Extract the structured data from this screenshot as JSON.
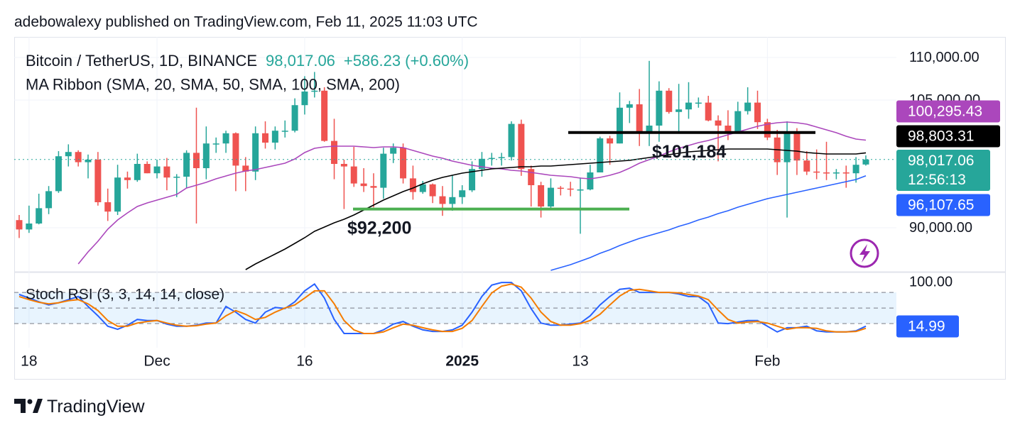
{
  "header": "adebowalexy published on TradingView.com, Feb 11, 2025 11:03 UTC",
  "footer": "TradingView",
  "chart_data": {
    "type": "candlestick",
    "title": "Bitcoin / TetherUS, 1D, BINANCE",
    "last_label": "98,017.06",
    "change": "+586.23 (+0.60%)",
    "countdown": "12:56:13",
    "indicator_label": "MA Ribbon (SMA, 20, SMA, 50, SMA, 100, SMA, 200)",
    "up_color": "#26a69a",
    "down_color": "#ef5350",
    "categories": [
      null,
      "18",
      null,
      null,
      null,
      null,
      null,
      null,
      null,
      null,
      null,
      null,
      null,
      null,
      "Dec",
      null,
      null,
      null,
      null,
      null,
      null,
      null,
      null,
      null,
      null,
      null,
      null,
      null,
      null,
      "16",
      null,
      null,
      null,
      null,
      null,
      null,
      null,
      null,
      null,
      null,
      null,
      null,
      null,
      null,
      null,
      "2025",
      null,
      null,
      null,
      null,
      null,
      null,
      null,
      null,
      null,
      null,
      null,
      "13",
      null,
      null,
      null,
      null,
      null,
      null,
      null,
      null,
      null,
      null,
      null,
      null,
      null,
      null,
      null,
      null,
      null,
      null,
      "Feb",
      null,
      null,
      null,
      null,
      null,
      null,
      null,
      null,
      null,
      null
    ],
    "open": [
      90900,
      89800,
      90500,
      92300,
      94300,
      98400,
      98900,
      97700,
      98000,
      93000,
      91900,
      95900,
      95600,
      97500,
      96400,
      97200,
      95900,
      96000,
      98800,
      97000,
      99900,
      99900,
      101100,
      97300,
      96600,
      101100,
      100000,
      101400,
      101400,
      104400,
      106000,
      106100,
      100200,
      97500,
      97200,
      95200,
      94900,
      94700,
      98700,
      99400,
      95800,
      94200,
      95100,
      93700,
      92800,
      93600,
      94400,
      96900,
      98100,
      98200,
      98300,
      102200,
      96900,
      95000,
      92500,
      94700,
      94600,
      94500,
      94500,
      96500,
      100500,
      99900,
      104100,
      104500,
      101100,
      102000,
      106100,
      103600,
      103900,
      104700,
      104700,
      102600,
      102000,
      101300,
      103700,
      104700,
      102400,
      100600,
      97700,
      101300,
      97900,
      96600,
      96500,
      96400,
      96500,
      96400,
      97430.83
    ],
    "high": [
      91500,
      92600,
      94000,
      94900,
      99000,
      99800,
      99100,
      98600,
      98900,
      94600,
      97400,
      96600,
      98700,
      97800,
      98000,
      98200,
      96300,
      99100,
      104100,
      101900,
      100600,
      101400,
      101200,
      98300,
      101900,
      102500,
      101900,
      102600,
      105200,
      107800,
      108300,
      106500,
      102800,
      98000,
      99500,
      97000,
      96400,
      99400,
      99900,
      99900,
      97300,
      95500,
      95200,
      94900,
      96200,
      95000,
      97800,
      98900,
      98800,
      98800,
      102500,
      102700,
      97300,
      95400,
      95800,
      94900,
      95400,
      95900,
      97400,
      100700,
      100800,
      105900,
      104900,
      106300,
      109600,
      107200,
      106400,
      106900,
      107100,
      105300,
      105500,
      103200,
      103800,
      104800,
      106500,
      106100,
      102800,
      101500,
      102500,
      101700,
      99000,
      99200,
      100100,
      96900,
      97300,
      98300,
      98500
    ],
    "low": [
      88800,
      89400,
      90400,
      91600,
      94100,
      97200,
      97200,
      95800,
      92600,
      90800,
      91500,
      94600,
      95400,
      96400,
      95800,
      94400,
      93600,
      94700,
      90500,
      95700,
      98800,
      98800,
      94300,
      94300,
      95600,
      99300,
      99200,
      100600,
      101200,
      103300,
      105300,
      100100,
      95700,
      92200,
      94800,
      94200,
      92400,
      93400,
      97600,
      95200,
      93300,
      94000,
      92900,
      91400,
      92000,
      92800,
      94200,
      96000,
      97300,
      97300,
      97900,
      96100,
      92500,
      91200,
      92200,
      93800,
      93700,
      89300,
      94400,
      96500,
      97400,
      99900,
      102300,
      99600,
      99600,
      100100,
      103400,
      101300,
      102800,
      104100,
      102500,
      97800,
      100300,
      101300,
      103300,
      101600,
      100300,
      96200,
      91200,
      96200,
      96200,
      95700,
      95600,
      95700,
      94700,
      95300,
      97300
    ],
    "close": [
      89800,
      90500,
      92300,
      94300,
      98400,
      98900,
      97700,
      98000,
      93000,
      91900,
      95900,
      95600,
      97500,
      96400,
      97200,
      95900,
      96000,
      98800,
      97000,
      99900,
      99900,
      101100,
      97300,
      96600,
      101100,
      100000,
      101400,
      101400,
      104400,
      106000,
      106100,
      100200,
      97500,
      97200,
      95200,
      94900,
      94700,
      98700,
      99400,
      95800,
      94200,
      95100,
      93700,
      92800,
      93600,
      94400,
      96900,
      98100,
      98200,
      98300,
      102200,
      96900,
      95000,
      92500,
      94700,
      94600,
      94500,
      94500,
      96500,
      100500,
      99900,
      104100,
      104500,
      101100,
      102000,
      106100,
      103600,
      103900,
      104700,
      104700,
      102600,
      102000,
      101300,
      103700,
      104700,
      102400,
      100600,
      97700,
      101300,
      97900,
      96600,
      96500,
      96400,
      96500,
      96400,
      97400,
      98017.06
    ],
    "series": [
      {
        "color": "#ab47bc",
        "last_label": "100,295.43",
        "values": [
          null,
          null,
          null,
          null,
          null,
          null,
          85750,
          87170,
          88420,
          89830,
          90920,
          91750,
          92500,
          92920,
          93250,
          93580,
          93920,
          94670,
          95000,
          95330,
          95750,
          96080,
          96420,
          96670,
          96830,
          97080,
          97330,
          97580,
          98080,
          98830,
          99330,
          99500,
          99580,
          99580,
          99580,
          99500,
          99420,
          99500,
          99500,
          99420,
          99080,
          98750,
          98420,
          98170,
          97830,
          97580,
          97330,
          97170,
          97000,
          96920,
          96750,
          96670,
          96500,
          96330,
          96170,
          96080,
          96000,
          95830,
          95750,
          95920,
          96170,
          96500,
          97000,
          97580,
          98000,
          98420,
          98920,
          99330,
          99670,
          100000,
          100250,
          100580,
          100920,
          101250,
          101580,
          101920,
          102170,
          102330,
          102420,
          102330,
          102170,
          101830,
          101500,
          101170,
          100750,
          100420,
          100295.43
        ]
      },
      {
        "color": "#000000",
        "last_label": "98,803.31",
        "values": [
          null,
          null,
          null,
          null,
          null,
          null,
          null,
          null,
          null,
          null,
          null,
          null,
          null,
          null,
          null,
          null,
          null,
          null,
          null,
          null,
          null,
          null,
          null,
          85080,
          85750,
          86330,
          86920,
          87500,
          88170,
          88830,
          89580,
          90080,
          90580,
          91000,
          91500,
          92080,
          92670,
          93250,
          93750,
          94250,
          94670,
          95170,
          95580,
          95920,
          96170,
          96420,
          96580,
          96750,
          96920,
          97000,
          97080,
          97170,
          97170,
          97250,
          97250,
          97330,
          97420,
          97500,
          97580,
          97670,
          97750,
          97830,
          97920,
          98080,
          98250,
          98420,
          98580,
          98750,
          98920,
          99000,
          99080,
          99170,
          99250,
          99250,
          99250,
          99250,
          99250,
          99170,
          99080,
          99000,
          98830,
          98750,
          98670,
          98670,
          98670,
          98670,
          98803.31
        ]
      },
      {
        "color": "#2962ff",
        "last_label": "96,107.65",
        "values": [
          null,
          null,
          null,
          null,
          null,
          null,
          null,
          null,
          null,
          null,
          null,
          null,
          null,
          null,
          null,
          null,
          null,
          null,
          null,
          null,
          null,
          null,
          null,
          null,
          null,
          null,
          null,
          null,
          null,
          null,
          null,
          null,
          null,
          null,
          null,
          null,
          null,
          null,
          null,
          null,
          null,
          null,
          null,
          null,
          null,
          null,
          null,
          null,
          null,
          null,
          null,
          null,
          null,
          null,
          85000,
          85330,
          85670,
          86080,
          86500,
          87000,
          87420,
          87920,
          88330,
          88750,
          89080,
          89420,
          89750,
          90170,
          90500,
          90920,
          91250,
          91670,
          92000,
          92420,
          92750,
          93080,
          93420,
          93670,
          93920,
          94170,
          94420,
          94670,
          94920,
          95170,
          95420,
          95670,
          96107.65
        ]
      }
    ],
    "ylim": [
      84833,
      112417
    ],
    "yticks": [
      {
        "value": 110000,
        "label": "110,000.00"
      },
      {
        "value": 105000,
        "label": "105,000.00"
      },
      {
        "value": 90000,
        "label": "90,000.00"
      }
    ],
    "grid": true,
    "levels": [
      {
        "label": "$101,184",
        "value": 101184,
        "color": "#000000"
      },
      {
        "label": "$92,200",
        "value": 92200,
        "color": "#4caf50"
      }
    ],
    "oscillator": {
      "type": "line",
      "title": "Stoch RSI (3, 3, 14, 14, close)",
      "ylim": [
        -26.3,
        118.3
      ],
      "yticks": [
        {
          "value": 100,
          "label": "100.00"
        }
      ],
      "hlines": [
        80,
        50,
        20
      ],
      "band_color": "#2196f3",
      "series": [
        {
          "color": "#2962ff",
          "last_label": "14.99",
          "values": [
            76,
            69,
            62,
            56,
            60,
            66,
            72,
            53,
            35,
            15,
            9,
            17,
            28,
            26,
            26,
            19,
            15,
            15,
            17,
            21,
            21,
            53,
            42,
            28,
            21,
            42,
            51,
            49,
            62,
            83,
            96,
            69,
            28,
            1,
            1,
            1,
            1,
            8,
            19,
            24,
            15,
            8,
            5,
            5,
            8,
            17,
            42,
            72,
            94,
            99,
            99,
            83,
            49,
            21,
            17,
            17,
            19,
            21,
            35,
            56,
            72,
            86,
            88,
            80,
            80,
            80,
            80,
            77,
            72,
            72,
            58,
            21,
            20,
            23,
            26,
            26,
            15,
            4,
            12,
            12,
            15,
            6,
            4,
            4,
            4,
            6,
            14.99
          ]
        },
        {
          "color": "#f57c00",
          "values": [
            72,
            66,
            61,
            58,
            60,
            64,
            66,
            58,
            45,
            26,
            15,
            15,
            21,
            24,
            26,
            21,
            17,
            15,
            16,
            19,
            21,
            35,
            45,
            38,
            28,
            32,
            42,
            50,
            56,
            69,
            83,
            83,
            58,
            26,
            8,
            1,
            1,
            4,
            12,
            19,
            17,
            12,
            8,
            5,
            5,
            11,
            26,
            53,
            79,
            92,
            96,
            90,
            69,
            42,
            24,
            17,
            17,
            20,
            26,
            38,
            56,
            73,
            84,
            86,
            83,
            80,
            80,
            79,
            76,
            73,
            66,
            46,
            28,
            21,
            23,
            24,
            21,
            15,
            9,
            12,
            12,
            11,
            6,
            4,
            4,
            5,
            11
          ]
        }
      ]
    }
  }
}
